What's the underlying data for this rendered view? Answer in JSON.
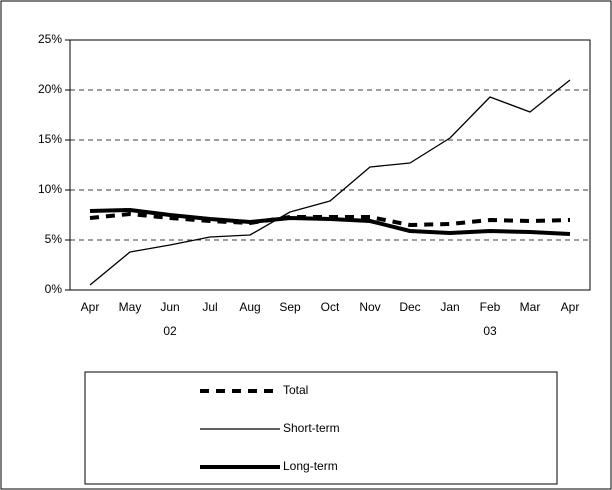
{
  "chart_data": {
    "type": "line",
    "categories": [
      "Apr",
      "May",
      "Jun",
      "Jul",
      "Aug",
      "Sep",
      "Oct",
      "Nov",
      "Dec",
      "Jan",
      "Feb",
      "Mar",
      "Apr"
    ],
    "category_row2": [
      null,
      null,
      "02",
      null,
      null,
      null,
      null,
      null,
      null,
      null,
      "03",
      null,
      null
    ],
    "series": [
      {
        "name": "Total",
        "color": "#000000",
        "style": "dashed",
        "width": 4,
        "values": [
          7.2,
          7.6,
          7.2,
          6.9,
          6.7,
          7.3,
          7.3,
          7.3,
          6.5,
          6.6,
          7.0,
          6.9,
          7.0
        ]
      },
      {
        "name": "Short-term",
        "color": "#000000",
        "style": "solid",
        "width": 1.3,
        "values": [
          0.5,
          3.8,
          4.5,
          5.3,
          5.5,
          7.8,
          8.9,
          12.3,
          12.7,
          15.2,
          19.3,
          17.8,
          21.0
        ]
      },
      {
        "name": "Long-term",
        "color": "#000000",
        "style": "solid",
        "width": 4,
        "values": [
          7.9,
          8.0,
          7.5,
          7.1,
          6.8,
          7.2,
          7.1,
          6.9,
          5.9,
          5.7,
          5.9,
          5.8,
          5.6
        ]
      }
    ],
    "ylim": [
      0,
      25
    ],
    "yticks": [
      {
        "value": 0,
        "label": "0%"
      },
      {
        "value": 5,
        "label": "5%"
      },
      {
        "value": 10,
        "label": "10%"
      },
      {
        "value": 15,
        "label": "15%"
      },
      {
        "value": 20,
        "label": "20%"
      },
      {
        "value": 25,
        "label": "25%"
      }
    ],
    "grid": true,
    "legend": "bottom"
  }
}
